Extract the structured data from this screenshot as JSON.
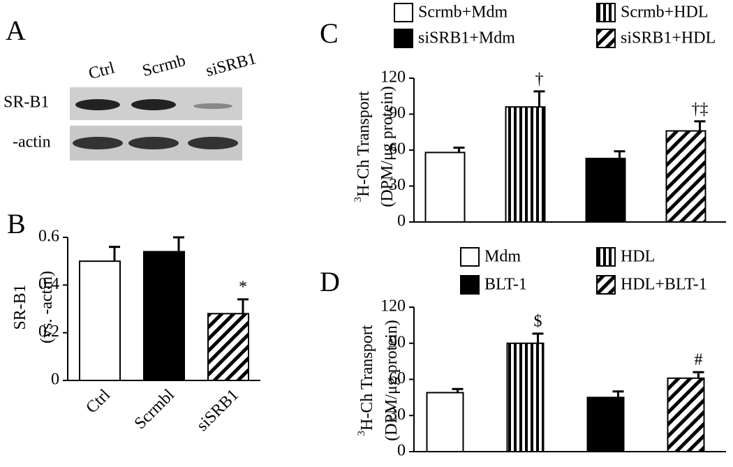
{
  "blot": {
    "panel": "A",
    "lanes": [
      "Ctrl",
      "Scrmb",
      "siSRB1"
    ],
    "rows": [
      "SR-B1",
      "-actin"
    ]
  },
  "chart_data": [
    {
      "type": "bar",
      "panel": "B",
      "ylabel": [
        "SR-B1",
        "(vs.   -actin)"
      ],
      "categories": [
        "Ctrl",
        "Scrmbl",
        "siSRB1"
      ],
      "values": [
        0.5,
        0.54,
        0.28
      ],
      "errors": [
        0.06,
        0.06,
        0.06
      ],
      "bar_styles": [
        "white",
        "black",
        "diagonal"
      ],
      "annotations": [
        null,
        null,
        "*"
      ],
      "ylim": [
        0,
        0.6
      ],
      "yticks": [
        0,
        0.2,
        0.4,
        0.6
      ]
    },
    {
      "type": "bar",
      "panel": "C",
      "ylabel_superscript": "3",
      "ylabel": [
        "H-Ch  Transport",
        "(DPM/μg protein)"
      ],
      "categories": [
        null,
        null,
        null,
        null
      ],
      "values": [
        58,
        96,
        53,
        76
      ],
      "errors": [
        4,
        13,
        6,
        8
      ],
      "bar_styles": [
        "white",
        "vertical",
        "black",
        "diagonal"
      ],
      "annotations": [
        null,
        "†",
        null,
        "†‡"
      ],
      "legend": [
        "Scrmb+Mdm",
        "Scrmb+HDL",
        "siSRB1+Mdm",
        "siSRB1+HDL"
      ],
      "ylim": [
        0,
        120
      ],
      "yticks": [
        0,
        30,
        60,
        90,
        120
      ]
    },
    {
      "type": "bar",
      "panel": "D",
      "ylabel_superscript": "3",
      "ylabel": [
        "H-Ch  Transport",
        "(DPM/μg protein)"
      ],
      "categories": [
        null,
        null,
        null,
        null
      ],
      "values": [
        49,
        90,
        45,
        61
      ],
      "errors": [
        3,
        8,
        5,
        5
      ],
      "bar_styles": [
        "white",
        "vertical",
        "black",
        "diagonal"
      ],
      "annotations": [
        null,
        "$",
        null,
        "#"
      ],
      "legend": [
        "Mdm",
        "HDL",
        "BLT-1",
        "HDL+BLT-1"
      ],
      "ylim": [
        0,
        120
      ],
      "yticks": [
        0,
        30,
        60,
        90,
        120
      ]
    }
  ]
}
